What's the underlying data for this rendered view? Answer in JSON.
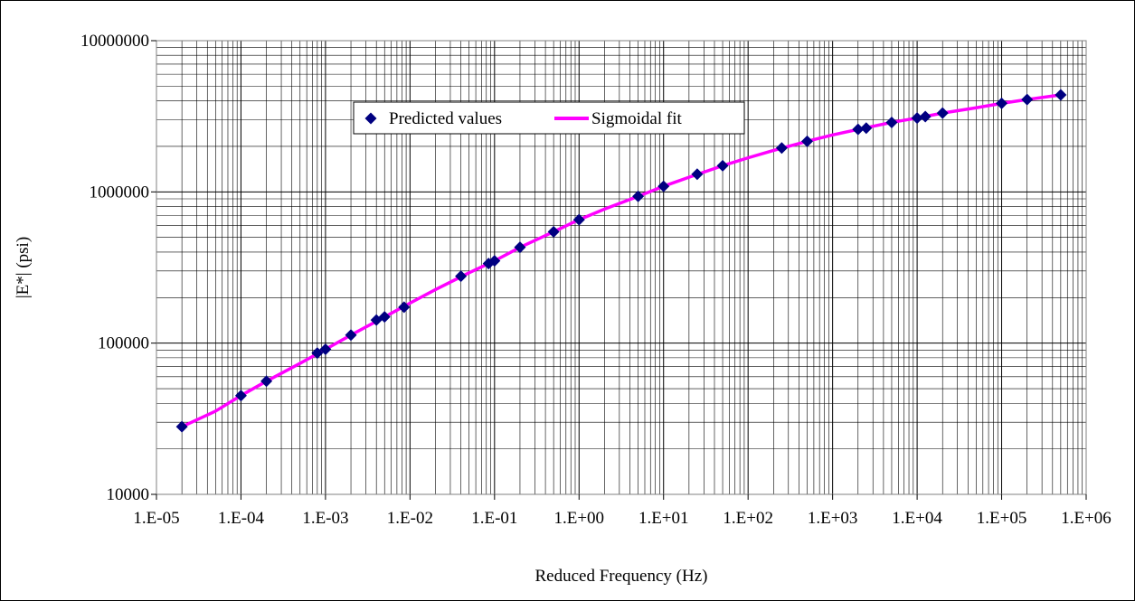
{
  "chart_data": {
    "type": "scatter",
    "title": "",
    "xlabel": "Reduced Frequency (Hz)",
    "ylabel": "|E*| (psi)",
    "x_scale": "log",
    "y_scale": "log",
    "xlim": [
      1e-05,
      1000000
    ],
    "ylim": [
      10000,
      10000000
    ],
    "x_tick_labels": [
      "1.E-05",
      "1.E-04",
      "1.E-03",
      "1.E-02",
      "1.E-01",
      "1.E+00",
      "1.E+01",
      "1.E+02",
      "1.E+03",
      "1.E+04",
      "1.E+05",
      "1.E+06"
    ],
    "y_tick_labels": [
      "10000",
      "100000",
      "1000000",
      "10000000"
    ],
    "grid": true,
    "legend_position": "top-center",
    "series": [
      {
        "name": "Predicted values",
        "kind": "markers",
        "marker": "diamond",
        "color": "#000080",
        "points": [
          [
            2e-05,
            28000
          ],
          [
            0.0001,
            45000
          ],
          [
            0.0002,
            56000
          ],
          [
            0.0008,
            86000
          ],
          [
            0.001,
            91000
          ],
          [
            0.002,
            113000
          ],
          [
            0.004,
            142000
          ],
          [
            0.005,
            149000
          ],
          [
            0.0085,
            173000
          ],
          [
            0.04,
            277000
          ],
          [
            0.085,
            336000
          ],
          [
            0.1,
            350000
          ],
          [
            0.2,
            430000
          ],
          [
            0.5,
            545000
          ],
          [
            1,
            655000
          ],
          [
            5,
            935000
          ],
          [
            10,
            1090000
          ],
          [
            25,
            1310000
          ],
          [
            50,
            1490000
          ],
          [
            250,
            1950000
          ],
          [
            500,
            2160000
          ],
          [
            2000,
            2590000
          ],
          [
            2500,
            2640000
          ],
          [
            5000,
            2880000
          ],
          [
            10000,
            3080000
          ],
          [
            12500,
            3150000
          ],
          [
            20000,
            3320000
          ],
          [
            100000,
            3850000
          ],
          [
            200000,
            4080000
          ],
          [
            500000,
            4380000
          ]
        ]
      },
      {
        "name": "Sigmoidal fit",
        "kind": "line",
        "color": "#ff00ff",
        "points": [
          [
            2e-05,
            28000
          ],
          [
            5e-05,
            35500
          ],
          [
            0.0001,
            45000
          ],
          [
            0.0002,
            56000
          ],
          [
            0.0005,
            73500
          ],
          [
            0.001,
            91000
          ],
          [
            0.002,
            113000
          ],
          [
            0.005,
            149000
          ],
          [
            0.01,
            184000
          ],
          [
            0.02,
            226000
          ],
          [
            0.05,
            292000
          ],
          [
            0.1,
            350000
          ],
          [
            0.2,
            430000
          ],
          [
            0.5,
            545000
          ],
          [
            1,
            655000
          ],
          [
            2,
            770000
          ],
          [
            5,
            935000
          ],
          [
            10,
            1090000
          ],
          [
            20,
            1250000
          ],
          [
            50,
            1490000
          ],
          [
            100,
            1680000
          ],
          [
            200,
            1880000
          ],
          [
            500,
            2160000
          ],
          [
            1000,
            2380000
          ],
          [
            2000,
            2590000
          ],
          [
            5000,
            2880000
          ],
          [
            10000,
            3080000
          ],
          [
            20000,
            3320000
          ],
          [
            50000,
            3600000
          ],
          [
            100000,
            3850000
          ],
          [
            200000,
            4080000
          ],
          [
            500000,
            4380000
          ]
        ]
      }
    ]
  }
}
